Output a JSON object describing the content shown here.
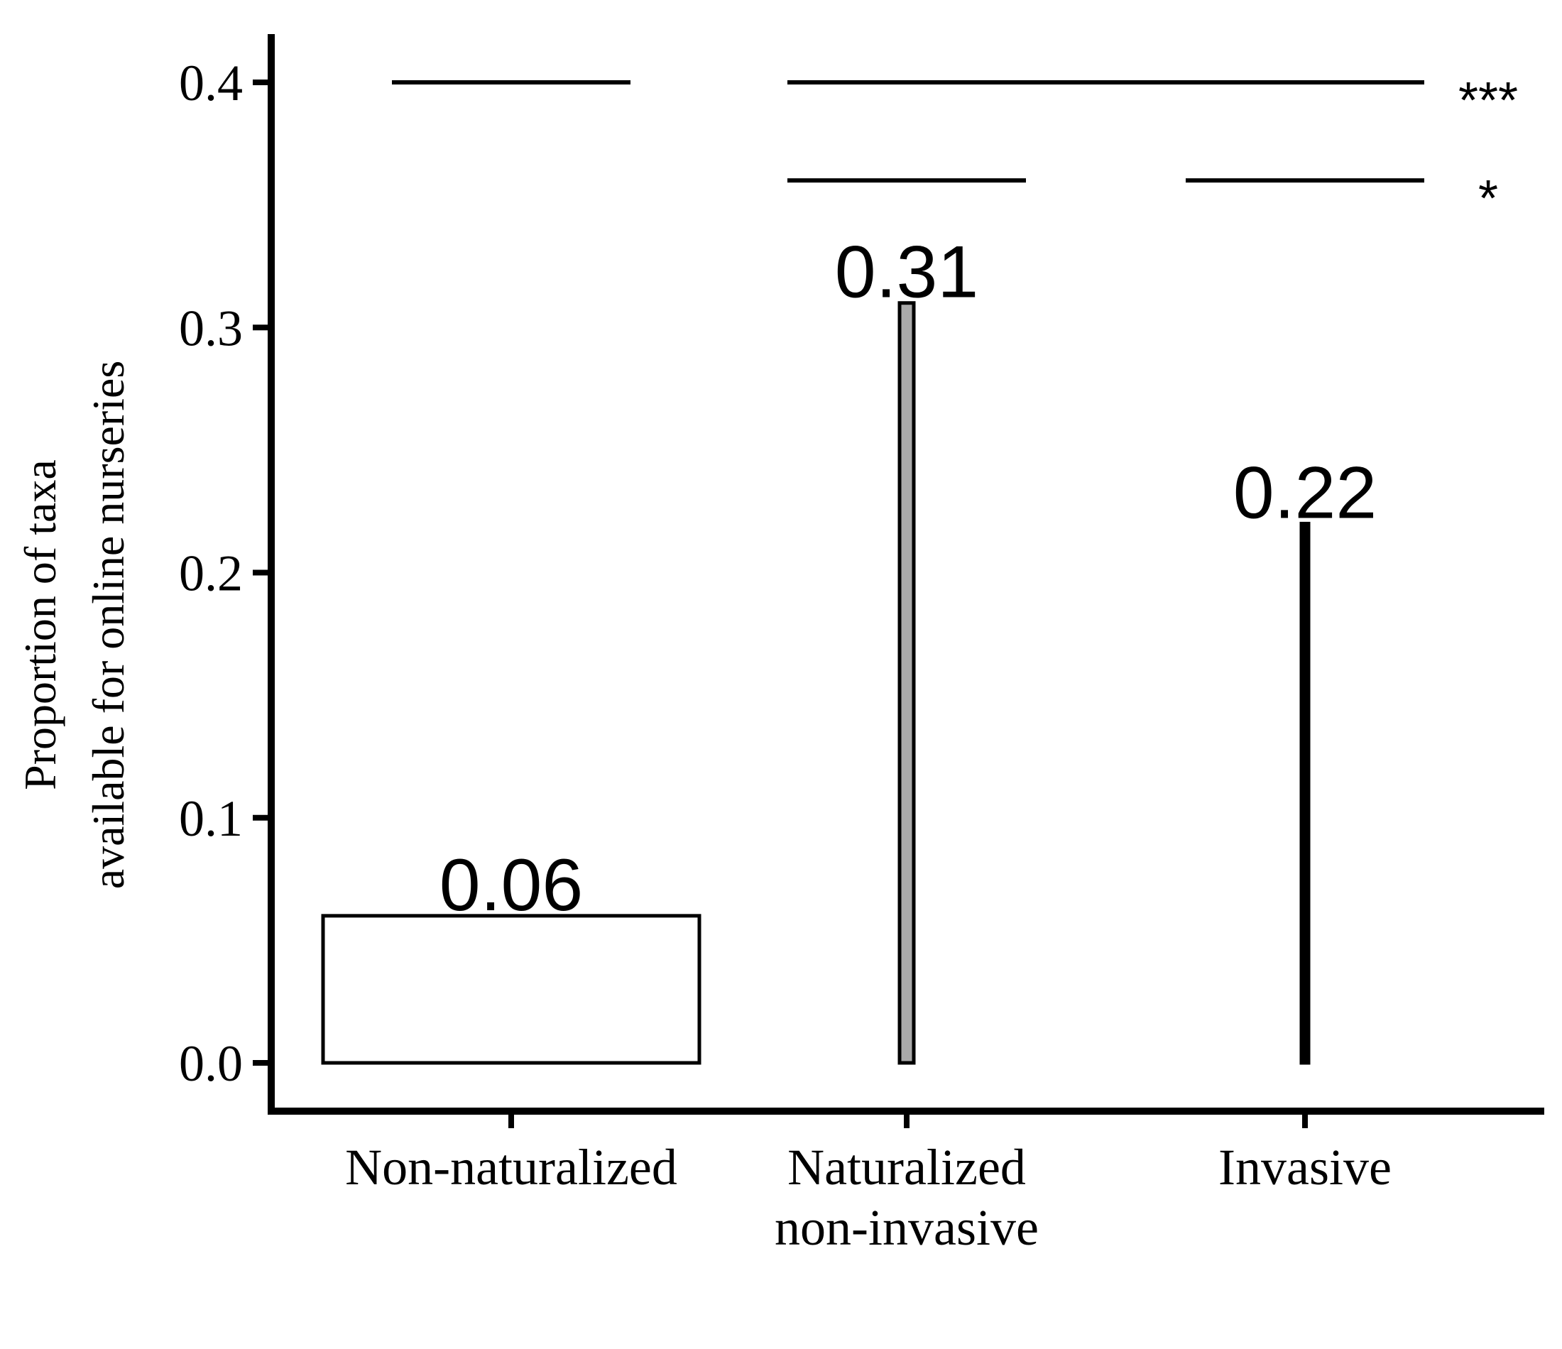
{
  "chart_data": {
    "type": "bar",
    "categories": [
      [
        "Non-naturalized"
      ],
      [
        "Naturalized",
        "non-invasive"
      ],
      [
        "Invasive"
      ]
    ],
    "values": [
      0.06,
      0.31,
      0.22
    ],
    "value_labels": [
      "0.06",
      "0.31",
      "0.22"
    ],
    "bar_fills": [
      "#ffffff",
      "#aaaaaa",
      "#000000"
    ],
    "ylabel": [
      "Proportion of taxa",
      "available for online nurseries"
    ],
    "xlabel": "",
    "ylim": [
      -0.02,
      0.42
    ],
    "yticks": [
      0.0,
      0.1,
      0.2,
      0.3,
      0.4
    ],
    "ytick_labels": [
      "0.0",
      "0.1",
      "0.2",
      "0.3",
      "0.4"
    ],
    "grid": false,
    "significance": [
      {
        "y": 0.4,
        "label": "***",
        "segments": [
          [
            0,
            0
          ],
          [
            1,
            2
          ]
        ]
      },
      {
        "y": 0.36,
        "label": "*",
        "segments": [
          [
            1,
            1
          ],
          [
            2,
            2
          ]
        ]
      }
    ]
  }
}
